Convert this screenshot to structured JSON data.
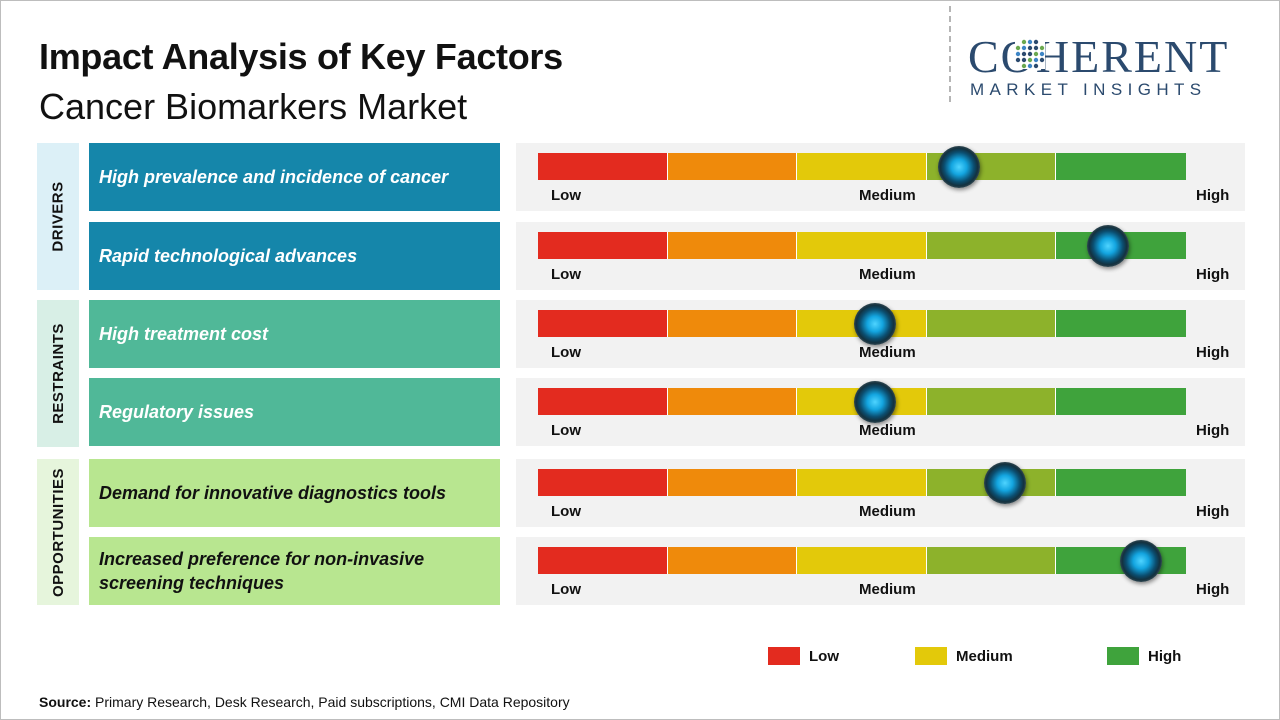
{
  "title": "Impact Analysis of Key Factors",
  "subtitle": "Cancer Biomarkers Market",
  "logo": {
    "word": "COHERENT",
    "tagline": "MARKET INSIGHTS"
  },
  "scale_labels": {
    "low": "Low",
    "medium": "Medium",
    "high": "High"
  },
  "scale_colors": [
    "#e32b1f",
    "#ef8a0b",
    "#e3c90a",
    "#8db22b",
    "#3fa33c"
  ],
  "groups": [
    {
      "name": "DRIVERS",
      "label_bg": "#dcf0f7",
      "factor_bg": "#1586aa",
      "factor_color": "#ffffff"
    },
    {
      "name": "RESTRAINTS",
      "label_bg": "#d8efe6",
      "factor_bg": "#50b898",
      "factor_color": "#ffffff"
    },
    {
      "name": "OPPORTUNITIES",
      "label_bg": "#e6f5dc",
      "factor_bg": "#b8e690",
      "factor_color": "#111111"
    }
  ],
  "legend": [
    {
      "label": "Low",
      "color": "#e32b1f"
    },
    {
      "label": "Medium",
      "color": "#e3c90a"
    },
    {
      "label": "High",
      "color": "#3fa33c"
    }
  ],
  "source": {
    "label": "Source:",
    "text": "Primary Research, Desk Research, Paid subscriptions, CMI Data Repository"
  },
  "chart_data": {
    "type": "bar",
    "scale": [
      "Low",
      "Medium",
      "High"
    ],
    "xlim": [
      0,
      1
    ],
    "categories": [
      "High prevalence and incidence of cancer",
      "Rapid technological advances",
      "High treatment cost",
      "Regulatory issues",
      "Demand for innovative diagnostics tools",
      "Increased preference for non-invasive screening techniques"
    ],
    "groups": [
      "DRIVERS",
      "DRIVERS",
      "RESTRAINTS",
      "RESTRAINTS",
      "OPPORTUNITIES",
      "OPPORTUNITIES"
    ],
    "values": [
      0.65,
      0.88,
      0.52,
      0.52,
      0.72,
      0.93
    ]
  }
}
